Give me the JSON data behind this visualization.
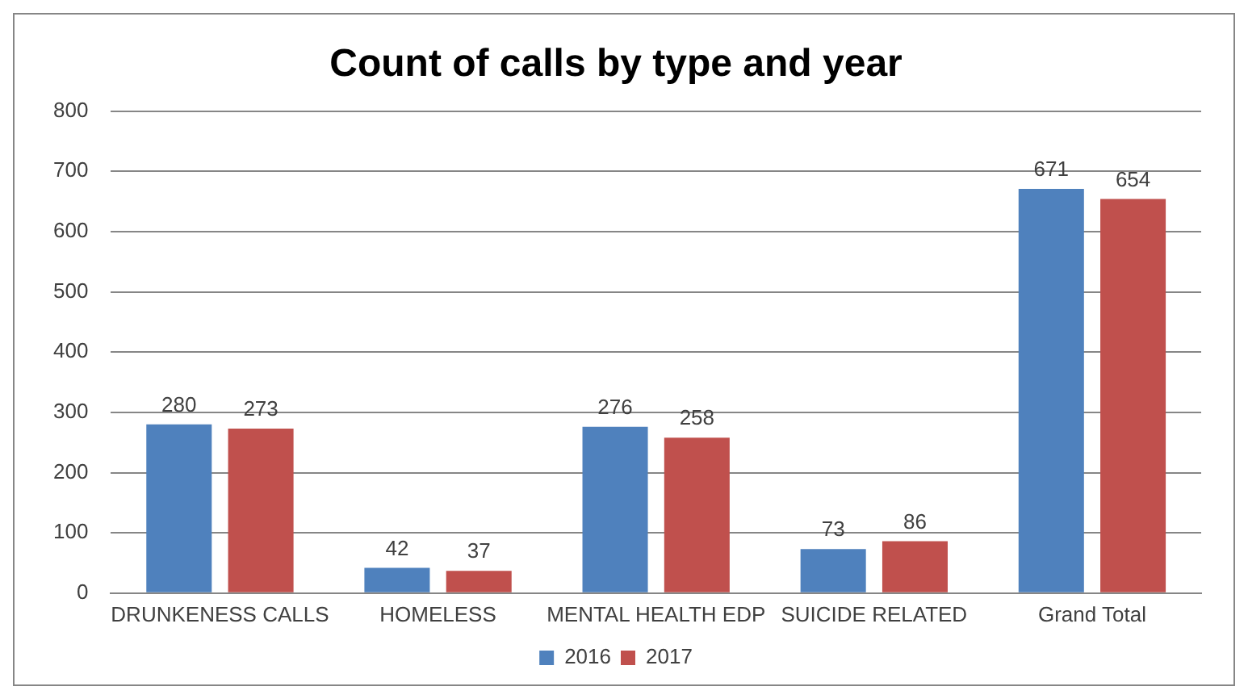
{
  "chart_data": {
    "type": "bar",
    "title": "Count of calls by type and year",
    "categories": [
      "DRUNKENESS CALLS",
      "HOMELESS",
      "MENTAL HEALTH EDP",
      "SUICIDE RELATED",
      "Grand Total"
    ],
    "series": [
      {
        "name": "2016",
        "color": "#4f81bd",
        "values": [
          280,
          42,
          276,
          73,
          671
        ]
      },
      {
        "name": "2017",
        "color": "#c0504d",
        "values": [
          273,
          37,
          258,
          86,
          654
        ]
      }
    ],
    "ylim": [
      0,
      800
    ],
    "yticks": [
      0,
      100,
      200,
      300,
      400,
      500,
      600,
      700,
      800
    ],
    "grid": "y",
    "legend": "bottom",
    "data_labels": true
  }
}
